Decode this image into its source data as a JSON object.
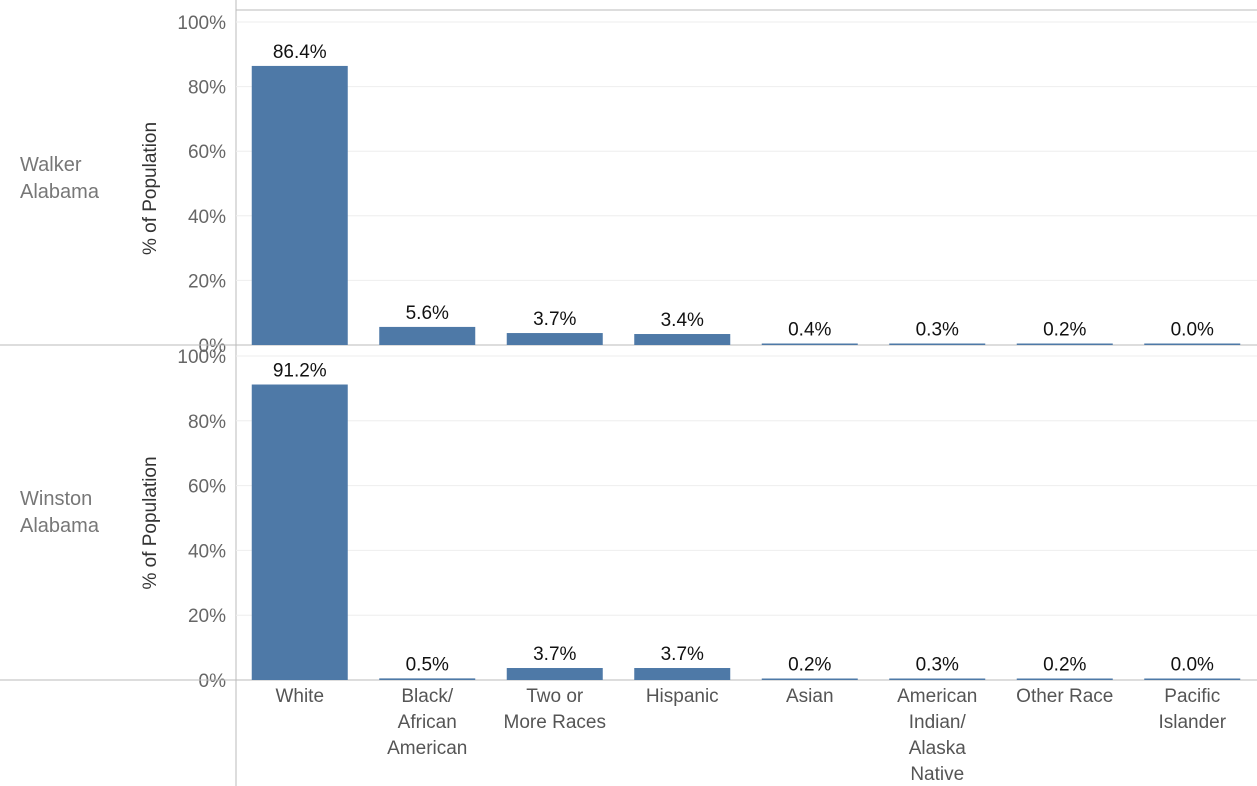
{
  "chart_data": {
    "type": "bar",
    "ylabel": "% of Population",
    "ylim": [
      0,
      100
    ],
    "yticks": [
      "100%",
      "80%",
      "60%",
      "40%",
      "20%",
      "0%"
    ],
    "categories": [
      [
        "White"
      ],
      [
        "Black/",
        "African",
        "American"
      ],
      [
        "Two or",
        "More Races"
      ],
      [
        "Hispanic"
      ],
      [
        "Asian"
      ],
      [
        "American",
        "Indian/",
        "Alaska",
        "Native"
      ],
      [
        "Other Race"
      ],
      [
        "Pacific",
        "Islander"
      ]
    ],
    "bar_color": "#4e79a7",
    "grid": true,
    "panels": [
      {
        "row_label": [
          "Walker",
          "Alabama"
        ],
        "values": [
          86.4,
          5.6,
          3.7,
          3.4,
          0.4,
          0.3,
          0.2,
          0.0
        ],
        "labels": [
          "86.4%",
          "5.6%",
          "3.7%",
          "3.4%",
          "0.4%",
          "0.3%",
          "0.2%",
          "0.0%"
        ]
      },
      {
        "row_label": [
          "Winston",
          "Alabama"
        ],
        "values": [
          91.2,
          0.5,
          3.7,
          3.7,
          0.2,
          0.3,
          0.2,
          0.0
        ],
        "labels": [
          "91.2%",
          "0.5%",
          "3.7%",
          "3.7%",
          "0.2%",
          "0.3%",
          "0.2%",
          "0.0%"
        ]
      }
    ]
  }
}
